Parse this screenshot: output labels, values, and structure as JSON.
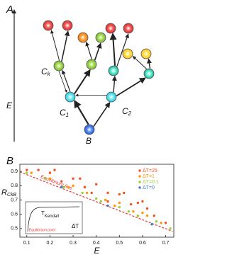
{
  "figure": {
    "panel_labels": [
      "A",
      "B"
    ]
  },
  "diagram": {
    "axis_label": "E",
    "labels": [
      {
        "main": "C",
        "sub": "k"
      },
      {
        "main": "C",
        "sub": "1"
      },
      {
        "main": "C",
        "sub": "2"
      },
      {
        "main": "B"
      }
    ]
  },
  "chart_data": {
    "type": "scatter",
    "xlabel": "E",
    "ylabel": {
      "main": "R",
      "sub": "CkB"
    },
    "xlim": [
      0.07,
      0.735
    ],
    "ylim": [
      0.44,
      0.95
    ],
    "xticks": [
      0.1,
      0.2,
      0.3,
      0.4,
      0.5,
      0.6,
      0.7
    ],
    "yticks": [
      0.5,
      0.6,
      0.7,
      0.8,
      0.9
    ],
    "legend": "upper right",
    "series": [
      {
        "name": "ΔT=25",
        "color": "#f4511e",
        "x": [
          0.1,
          0.15,
          0.2,
          0.25,
          0.3,
          0.35,
          0.4,
          0.45,
          0.5,
          0.55,
          0.6,
          0.65,
          0.7,
          0.22,
          0.38,
          0.52,
          0.62,
          0.45,
          0.33,
          0.58
        ],
        "values": [
          0.91,
          0.91,
          0.89,
          0.83,
          0.85,
          0.79,
          0.81,
          0.75,
          0.74,
          0.67,
          0.69,
          0.59,
          0.54,
          0.91,
          0.75,
          0.75,
          0.64,
          0.69,
          0.85,
          0.68
        ]
      },
      {
        "name": "ΔT=1",
        "color": "#ff9800",
        "x": [
          0.12,
          0.2,
          0.28,
          0.36,
          0.44,
          0.5,
          0.56,
          0.62,
          0.68,
          0.3,
          0.48,
          0.6
        ],
        "values": [
          0.89,
          0.85,
          0.79,
          0.75,
          0.7,
          0.68,
          0.62,
          0.59,
          0.54,
          0.8,
          0.66,
          0.61
        ]
      },
      {
        "name": "ΔT=0.1",
        "color": "#9ccc3c",
        "x": [
          0.1,
          0.18,
          0.26,
          0.34,
          0.42,
          0.5,
          0.58,
          0.66,
          0.72,
          0.4,
          0.54
        ],
        "values": [
          0.89,
          0.85,
          0.79,
          0.75,
          0.69,
          0.65,
          0.59,
          0.55,
          0.5,
          0.71,
          0.62
        ]
      },
      {
        "name": "ΔT=0",
        "color": "#3f7fbf",
        "x": [
          0.25,
          0.45,
          0.64
        ],
        "values": [
          0.79,
          0.66,
          0.53
        ]
      }
    ],
    "reference_line": {
      "label": "Equilibrium line",
      "color": "#e53935",
      "x": [
        0.07,
        0.73
      ],
      "values": [
        0.896,
        0.48
      ]
    },
    "inset": {
      "ylabel": {
        "main": "T",
        "sub": "Kendall"
      },
      "xlabel": "ΔT",
      "annotation": "Equilibrium point"
    }
  }
}
